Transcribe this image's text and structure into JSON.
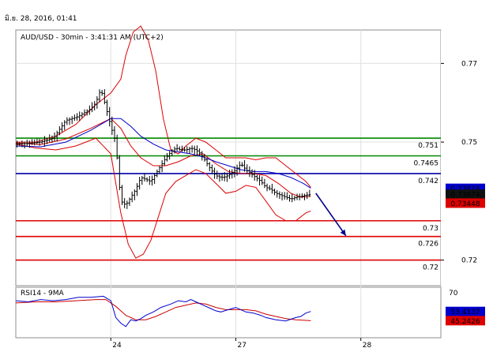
{
  "header": {
    "timestamp": "มิ.ย. 28, 2016, 01:41"
  },
  "price_panel": {
    "title": "AUD/USD - 30min - 3:41:31 AM (UTC+2)"
  },
  "rsi_panel": {
    "title": "RSI14 - 9MA"
  },
  "colors": {
    "grid": "#e0e0e0",
    "frame": "#8c8c8c",
    "axis_area": "#f0f0f0",
    "candle": "#000000",
    "bollinger": "#dd0000",
    "moving_average": "#0000cc",
    "support": "#e00000",
    "resistance_green": "#008800",
    "pivot_blue": "#0000aa",
    "rsi_line": "#0000cc",
    "rsi_ma": "#cc0000",
    "arrow": "#000088"
  },
  "chart_data": {
    "type": "candlestick",
    "symbol": "AUD/USD",
    "timeframe": "30min",
    "y_range": [
      0.7135,
      0.7785
    ],
    "y_ticks": [
      {
        "value": 0.77,
        "label": "0.77"
      },
      {
        "value": 0.75,
        "label": "0.75"
      },
      {
        "value": 0.72,
        "label": "0.72"
      }
    ],
    "x_range": [
      0,
      170
    ],
    "x_ticks": [
      {
        "x": 38,
        "label": "24"
      },
      {
        "x": 88,
        "label": "27"
      },
      {
        "x": 138,
        "label": "28"
      }
    ],
    "horizontal_levels": [
      {
        "value": 0.751,
        "label": "0.751",
        "color": "green"
      },
      {
        "value": 0.7465,
        "label": "0.7465",
        "color": "green"
      },
      {
        "value": 0.742,
        "label": "0.742",
        "color": "blue"
      },
      {
        "value": 0.73,
        "label": "0.73",
        "color": "red"
      },
      {
        "value": 0.726,
        "label": "0.726",
        "color": "red"
      },
      {
        "value": 0.72,
        "label": "0.72",
        "color": "red"
      }
    ],
    "price_tags": [
      {
        "value": 0.73824,
        "label": "0.73824",
        "style": "blue"
      },
      {
        "value": 0.73674,
        "label": "0.73674",
        "style": "black"
      },
      {
        "value": 0.73448,
        "label": "0.73448",
        "style": "red"
      }
    ],
    "close_path": [
      [
        0,
        0.7495
      ],
      [
        5,
        0.7497
      ],
      [
        10,
        0.75
      ],
      [
        15,
        0.751
      ],
      [
        20,
        0.7555
      ],
      [
        25,
        0.7565
      ],
      [
        30,
        0.7585
      ],
      [
        32,
        0.76
      ],
      [
        34,
        0.7635
      ],
      [
        36,
        0.759
      ],
      [
        38,
        0.754
      ],
      [
        40,
        0.75
      ],
      [
        41,
        0.742
      ],
      [
        42,
        0.735
      ],
      [
        44,
        0.734
      ],
      [
        46,
        0.736
      ],
      [
        48,
        0.738
      ],
      [
        50,
        0.741
      ],
      [
        52,
        0.7405
      ],
      [
        54,
        0.74
      ],
      [
        56,
        0.742
      ],
      [
        58,
        0.744
      ],
      [
        60,
        0.746
      ],
      [
        62,
        0.7475
      ],
      [
        64,
        0.7485
      ],
      [
        66,
        0.748
      ],
      [
        68,
        0.748
      ],
      [
        70,
        0.7485
      ],
      [
        72,
        0.748
      ],
      [
        74,
        0.747
      ],
      [
        76,
        0.745
      ],
      [
        78,
        0.743
      ],
      [
        80,
        0.7415
      ],
      [
        82,
        0.741
      ],
      [
        84,
        0.7412
      ],
      [
        86,
        0.742
      ],
      [
        88,
        0.743
      ],
      [
        90,
        0.7445
      ],
      [
        92,
        0.743
      ],
      [
        94,
        0.742
      ],
      [
        96,
        0.741
      ],
      [
        98,
        0.74
      ],
      [
        100,
        0.7385
      ],
      [
        102,
        0.738
      ],
      [
        104,
        0.737
      ],
      [
        106,
        0.7365
      ],
      [
        108,
        0.736
      ],
      [
        110,
        0.7355
      ],
      [
        112,
        0.736
      ],
      [
        114,
        0.7362
      ],
      [
        116,
        0.7365
      ],
      [
        118,
        0.7367
      ]
    ],
    "bb_upper": [
      [
        0,
        0.75
      ],
      [
        8,
        0.75
      ],
      [
        16,
        0.7515
      ],
      [
        24,
        0.7545
      ],
      [
        32,
        0.7595
      ],
      [
        38,
        0.7625
      ],
      [
        42,
        0.766
      ],
      [
        44,
        0.772
      ],
      [
        47,
        0.778
      ],
      [
        50,
        0.7795
      ],
      [
        53,
        0.776
      ],
      [
        56,
        0.768
      ],
      [
        59,
        0.756
      ],
      [
        62,
        0.748
      ],
      [
        65,
        0.747
      ],
      [
        68,
        0.749
      ],
      [
        72,
        0.751
      ],
      [
        76,
        0.75
      ],
      [
        80,
        0.748
      ],
      [
        84,
        0.746
      ],
      [
        88,
        0.746
      ],
      [
        92,
        0.746
      ],
      [
        96,
        0.7455
      ],
      [
        100,
        0.746
      ],
      [
        104,
        0.746
      ],
      [
        108,
        0.744
      ],
      [
        112,
        0.742
      ],
      [
        116,
        0.74
      ],
      [
        118,
        0.7385
      ]
    ],
    "bb_lower": [
      [
        0,
        0.7495
      ],
      [
        8,
        0.7485
      ],
      [
        16,
        0.748
      ],
      [
        24,
        0.749
      ],
      [
        32,
        0.751
      ],
      [
        38,
        0.747
      ],
      [
        42,
        0.732
      ],
      [
        45,
        0.724
      ],
      [
        48,
        0.7205
      ],
      [
        51,
        0.7215
      ],
      [
        54,
        0.725
      ],
      [
        57,
        0.731
      ],
      [
        60,
        0.737
      ],
      [
        64,
        0.74
      ],
      [
        68,
        0.7415
      ],
      [
        72,
        0.743
      ],
      [
        76,
        0.742
      ],
      [
        80,
        0.7395
      ],
      [
        84,
        0.737
      ],
      [
        88,
        0.7375
      ],
      [
        92,
        0.739
      ],
      [
        96,
        0.7385
      ],
      [
        100,
        0.735
      ],
      [
        104,
        0.7315
      ],
      [
        108,
        0.73
      ],
      [
        112,
        0.73
      ],
      [
        116,
        0.732
      ],
      [
        118,
        0.7325
      ]
    ],
    "bb_middle": [
      [
        0,
        0.7498
      ],
      [
        10,
        0.7494
      ],
      [
        20,
        0.7508
      ],
      [
        30,
        0.7535
      ],
      [
        38,
        0.756
      ],
      [
        42,
        0.7535
      ],
      [
        46,
        0.749
      ],
      [
        50,
        0.746
      ],
      [
        55,
        0.744
      ],
      [
        60,
        0.744
      ],
      [
        65,
        0.745
      ],
      [
        70,
        0.7465
      ],
      [
        75,
        0.747
      ],
      [
        80,
        0.7445
      ],
      [
        85,
        0.7425
      ],
      [
        90,
        0.742
      ],
      [
        95,
        0.742
      ],
      [
        100,
        0.7415
      ],
      [
        105,
        0.7395
      ],
      [
        110,
        0.737
      ],
      [
        114,
        0.736
      ],
      [
        118,
        0.7362
      ]
    ],
    "moving_average": [
      [
        0,
        0.749
      ],
      [
        10,
        0.7488
      ],
      [
        20,
        0.75
      ],
      [
        30,
        0.753
      ],
      [
        38,
        0.756
      ],
      [
        42,
        0.756
      ],
      [
        46,
        0.754
      ],
      [
        50,
        0.7515
      ],
      [
        55,
        0.7495
      ],
      [
        60,
        0.748
      ],
      [
        65,
        0.7475
      ],
      [
        70,
        0.747
      ],
      [
        75,
        0.7462
      ],
      [
        80,
        0.745
      ],
      [
        85,
        0.744
      ],
      [
        90,
        0.743
      ],
      [
        95,
        0.7425
      ],
      [
        100,
        0.7425
      ],
      [
        105,
        0.742
      ],
      [
        110,
        0.741
      ],
      [
        115,
        0.7395
      ],
      [
        118,
        0.7383
      ]
    ],
    "projection_arrow": {
      "from": [
        120,
        0.737
      ],
      "to": [
        132,
        0.7262
      ]
    },
    "rsi": {
      "y_range": [
        30,
        75
      ],
      "ticks": [
        {
          "value": 70,
          "label": "70"
        }
      ],
      "rsi_value": 53.4137,
      "rsi_label": "53.4137",
      "ma_value": 45.2426,
      "ma_label": "45.2426",
      "rsi_path": [
        [
          0,
          63
        ],
        [
          5,
          62
        ],
        [
          10,
          64
        ],
        [
          15,
          63
        ],
        [
          20,
          64
        ],
        [
          25,
          66
        ],
        [
          30,
          66
        ],
        [
          35,
          67
        ],
        [
          38,
          63
        ],
        [
          40,
          48
        ],
        [
          42,
          43
        ],
        [
          44,
          40
        ],
        [
          46,
          46
        ],
        [
          48,
          45
        ],
        [
          50,
          47
        ],
        [
          52,
          50
        ],
        [
          55,
          53
        ],
        [
          58,
          57
        ],
        [
          62,
          60
        ],
        [
          65,
          63
        ],
        [
          68,
          62
        ],
        [
          70,
          64
        ],
        [
          72,
          62
        ],
        [
          75,
          59
        ],
        [
          78,
          56
        ],
        [
          80,
          54
        ],
        [
          82,
          53
        ],
        [
          85,
          55
        ],
        [
          88,
          57
        ],
        [
          90,
          55
        ],
        [
          92,
          53
        ],
        [
          95,
          52
        ],
        [
          98,
          50
        ],
        [
          100,
          48
        ],
        [
          104,
          46
        ],
        [
          108,
          45
        ],
        [
          112,
          48
        ],
        [
          114,
          49
        ],
        [
          116,
          52
        ],
        [
          118,
          53.4
        ]
      ],
      "ma_path": [
        [
          0,
          61
        ],
        [
          8,
          62
        ],
        [
          16,
          62
        ],
        [
          24,
          63
        ],
        [
          32,
          64
        ],
        [
          36,
          64
        ],
        [
          40,
          58
        ],
        [
          44,
          50
        ],
        [
          48,
          46
        ],
        [
          52,
          46
        ],
        [
          56,
          49
        ],
        [
          60,
          53
        ],
        [
          64,
          57
        ],
        [
          68,
          59
        ],
        [
          72,
          61
        ],
        [
          76,
          60
        ],
        [
          80,
          57
        ],
        [
          84,
          55
        ],
        [
          88,
          55
        ],
        [
          92,
          55
        ],
        [
          96,
          54
        ],
        [
          100,
          51
        ],
        [
          104,
          49
        ],
        [
          108,
          47
        ],
        [
          112,
          46
        ],
        [
          116,
          45.5
        ],
        [
          118,
          45.2
        ]
      ]
    }
  }
}
